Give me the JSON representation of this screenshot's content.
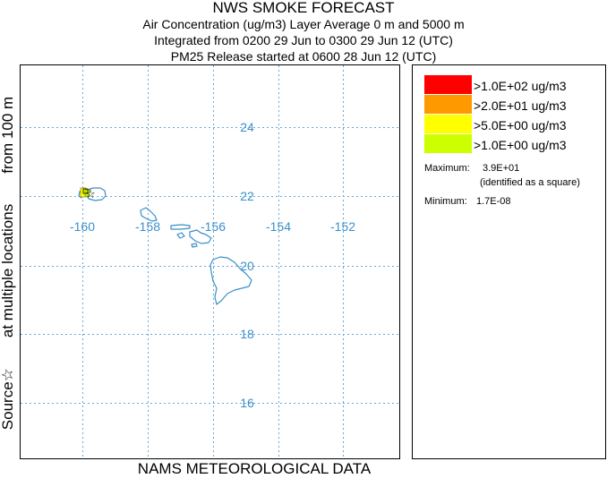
{
  "header": {
    "title": "NWS SMOKE FORECAST",
    "line1": "Air Concentration (ug/m3) Layer Average    0 m and  5000 m",
    "line2": "Integrated from 0200 29 Jun to 0300 29 Jun 12 (UTC)",
    "line3": "PM25 Release started at 0600 28 Jun 12 (UTC)"
  },
  "side_label": {
    "part1": "Source☆",
    "part2": "at multiple locations",
    "part3": "from   100 m"
  },
  "bottom_label": "NAMS METEOROLOGICAL DATA",
  "map": {
    "lon_ticks": [
      "-160",
      "-158",
      "-156",
      "-154",
      "-152"
    ],
    "lat_ticks": [
      "24",
      "22",
      "20",
      "18",
      "16"
    ],
    "coast_color": "#3a8fc9",
    "grid_color": "#6aa7d6"
  },
  "legend": {
    "items": [
      {
        "label": ">1.0E+02 ug/m3",
        "color": "#ff0000"
      },
      {
        "label": ">2.0E+01 ug/m3",
        "color": "#ff9900"
      },
      {
        "label": ">5.0E+00 ug/m3",
        "color": "#ffff00"
      },
      {
        "label": ">1.0E+00 ug/m3",
        "color": "#ccff00"
      }
    ],
    "maximum_label": "Maximum:",
    "maximum_value": "3.9E+01",
    "maximum_note": "(identified as a square)",
    "minimum_label": "Minimum:",
    "minimum_value": "1.7E-08"
  }
}
